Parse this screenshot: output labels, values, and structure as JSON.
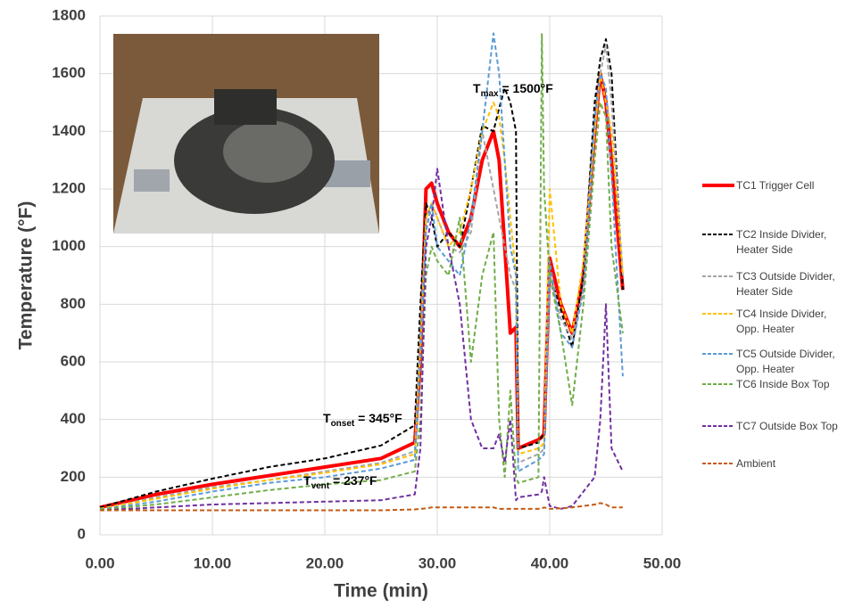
{
  "chart_data": {
    "type": "line",
    "x_label": "Time (min)",
    "y_label": "Temperature (°F)",
    "xlim": [
      0,
      50
    ],
    "ylim": [
      0,
      1800
    ],
    "xticks": [
      {
        "value": 0,
        "label": "0.00"
      },
      {
        "value": 10,
        "label": "10.00"
      },
      {
        "value": 20,
        "label": "20.00"
      },
      {
        "value": 30,
        "label": "30.00"
      },
      {
        "value": 40,
        "label": "40.00"
      },
      {
        "value": 50,
        "label": "50.00"
      }
    ],
    "yticks": [
      0,
      200,
      400,
      600,
      800,
      1000,
      1200,
      1400,
      1600,
      1800
    ],
    "grid": true,
    "legend": "right",
    "x": [
      0,
      5,
      10,
      15,
      20,
      25,
      28,
      28.5,
      29,
      29.5,
      30,
      31,
      32,
      33,
      34,
      35,
      35.5,
      36,
      36.5,
      37,
      37.2,
      39,
      39.3,
      39.5,
      40,
      41,
      42,
      43,
      44,
      44.5,
      45,
      45.5,
      46.5
    ],
    "series": [
      {
        "name": "TC1 Trigger Cell",
        "color": "#ff0000",
        "dashed": false,
        "values": [
          95,
          140,
          175,
          205,
          235,
          265,
          320,
          600,
          1200,
          1220,
          1150,
          1050,
          1000,
          1100,
          1300,
          1400,
          1300,
          1000,
          700,
          720,
          300,
          330,
          340,
          350,
          960,
          800,
          700,
          900,
          1400,
          1600,
          1500,
          1300,
          850
        ]
      },
      {
        "name": "TC2 Inside Divider, Heater Side",
        "color": "#000000",
        "dashed": true,
        "values": [
          95,
          150,
          195,
          235,
          265,
          310,
          380,
          800,
          1150,
          1100,
          1000,
          1050,
          1000,
          1200,
          1420,
          1400,
          1480,
          1550,
          1500,
          1400,
          300,
          320,
          340,
          350,
          900,
          780,
          650,
          900,
          1500,
          1650,
          1720,
          1600,
          850
        ]
      },
      {
        "name": "TC3 Outside Divider, Heater Side",
        "color": "#a5a5a5",
        "dashed": true,
        "values": [
          90,
          130,
          165,
          190,
          220,
          250,
          290,
          700,
          1100,
          1150,
          1100,
          1000,
          980,
          1050,
          1400,
          1200,
          1100,
          1000,
          900,
          850,
          250,
          280,
          290,
          300,
          900,
          750,
          680,
          850,
          1400,
          1600,
          1700,
          1500,
          900
        ]
      },
      {
        "name": "TC4 Inside Divider, Opp. Heater",
        "color": "#ffc000",
        "dashed": true,
        "values": [
          90,
          125,
          160,
          190,
          215,
          245,
          280,
          650,
          1100,
          1150,
          1100,
          1000,
          1050,
          1200,
          1400,
          1500,
          1450,
          1300,
          1100,
          900,
          280,
          300,
          310,
          320,
          1200,
          800,
          700,
          950,
          1400,
          1600,
          1500,
          1400,
          900
        ]
      },
      {
        "name": "TC5 Outside Divider, Opp. Heater",
        "color": "#5b9bd5",
        "dashed": true,
        "values": [
          88,
          115,
          150,
          180,
          200,
          230,
          260,
          600,
          1050,
          1150,
          1000,
          950,
          900,
          1100,
          1400,
          1740,
          1600,
          1300,
          1000,
          900,
          220,
          260,
          270,
          280,
          950,
          700,
          650,
          850,
          1450,
          1600,
          1550,
          1250,
          550
        ]
      },
      {
        "name": "TC6 Inside Box Top",
        "color": "#70ad47",
        "dashed": true,
        "values": [
          88,
          105,
          130,
          155,
          175,
          190,
          220,
          400,
          900,
          1000,
          950,
          900,
          1100,
          600,
          900,
          1050,
          400,
          200,
          500,
          200,
          180,
          200,
          1740,
          1200,
          900,
          700,
          450,
          800,
          1300,
          1500,
          1450,
          1000,
          700
        ]
      },
      {
        "name": "TC7 Outside Box Top",
        "color": "#7030a0",
        "dashed": true,
        "values": [
          85,
          95,
          105,
          110,
          115,
          120,
          140,
          300,
          1000,
          1100,
          1270,
          1000,
          800,
          400,
          300,
          300,
          350,
          250,
          400,
          120,
          130,
          140,
          150,
          200,
          100,
          90,
          100,
          150,
          200,
          400,
          800,
          300,
          220
        ]
      },
      {
        "name": "Ambient",
        "color": "#c55a11",
        "dashed": true,
        "values": [
          85,
          85,
          85,
          85,
          85,
          85,
          88,
          90,
          92,
          95,
          95,
          95,
          95,
          95,
          95,
          95,
          90,
          90,
          90,
          90,
          90,
          90,
          92,
          95,
          90,
          92,
          95,
          100,
          105,
          110,
          105,
          95,
          95
        ]
      }
    ],
    "annotations": [
      {
        "base": "T",
        "sub": "onset",
        "tail": " = 345°F"
      },
      {
        "base": "T",
        "sub": "vent",
        "tail": " = 237°F"
      },
      {
        "base": "T",
        "sub": "max",
        "tail": " = 1500°F"
      }
    ]
  }
}
